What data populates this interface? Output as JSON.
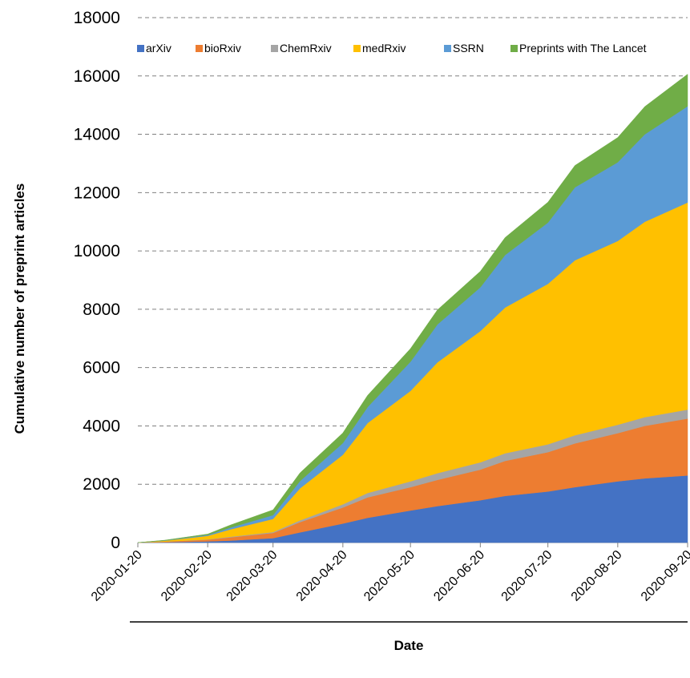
{
  "chart_data": {
    "type": "area",
    "stacked": true,
    "xlabel": "Date",
    "ylabel": "Cumulative number of preprint articles",
    "ylim": [
      0,
      18000
    ],
    "yticks": [
      "0",
      "2000",
      "4000",
      "6000",
      "8000",
      "10000",
      "12000",
      "14000",
      "16000",
      "18000"
    ],
    "xlim": [
      "2020-01-20",
      "2020-09-20"
    ],
    "xticks": [
      "2020-01-20",
      "2020-02-20",
      "2020-03-20",
      "2020-04-20",
      "2020-05-20",
      "2020-06-20",
      "2020-07-20",
      "2020-08-20",
      "2020-09-20"
    ],
    "grid": "horizontal dashed",
    "legend_position": "top",
    "x": [
      "2020-01-20",
      "2020-02-01",
      "2020-02-20",
      "2020-03-01",
      "2020-03-20",
      "2020-04-01",
      "2020-04-20",
      "2020-05-01",
      "2020-05-20",
      "2020-06-01",
      "2020-06-20",
      "2020-07-01",
      "2020-07-20",
      "2020-08-01",
      "2020-08-20",
      "2020-09-01",
      "2020-09-20"
    ],
    "series": [
      {
        "name": "arXiv",
        "color": "#4472C4",
        "values": [
          0,
          10,
          40,
          70,
          150,
          350,
          650,
          850,
          1100,
          1250,
          1450,
          1600,
          1750,
          1900,
          2100,
          2200,
          2300
        ]
      },
      {
        "name": "bioRxiv",
        "color": "#ED7D31",
        "values": [
          0,
          20,
          60,
          110,
          180,
          350,
          550,
          700,
          800,
          900,
          1050,
          1200,
          1350,
          1500,
          1650,
          1800,
          1950
        ]
      },
      {
        "name": "ChemRxiv",
        "color": "#A5A5A5",
        "values": [
          0,
          2,
          10,
          20,
          30,
          60,
          110,
          150,
          200,
          230,
          250,
          260,
          270,
          280,
          290,
          300,
          310
        ]
      },
      {
        "name": "medRxiv",
        "color": "#FFC000",
        "values": [
          0,
          30,
          120,
          250,
          450,
          1100,
          1700,
          2400,
          3100,
          3800,
          4500,
          5000,
          5500,
          6000,
          6300,
          6700,
          7100
        ]
      },
      {
        "name": "SSRN",
        "color": "#5B9BD5",
        "values": [
          0,
          10,
          30,
          60,
          130,
          250,
          400,
          550,
          1000,
          1300,
          1500,
          1800,
          2100,
          2500,
          2700,
          3000,
          3300
        ]
      },
      {
        "name": "Preprints with The Lancet",
        "color": "#70AD47",
        "values": [
          0,
          10,
          30,
          90,
          180,
          280,
          350,
          400,
          450,
          500,
          550,
          600,
          700,
          750,
          850,
          950,
          1100
        ]
      }
    ]
  }
}
